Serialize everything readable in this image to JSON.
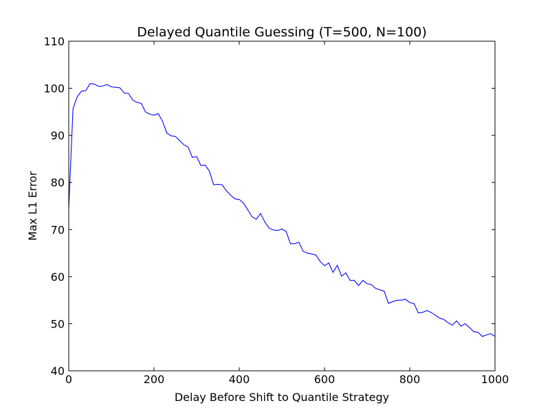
{
  "chart_data": {
    "type": "line",
    "title": "Delayed Quantile Guessing (T=500, N=100)",
    "xlabel": "Delay Before Shift to Quantile Strategy",
    "ylabel": "Max L1 Error",
    "xlim": [
      0,
      1000
    ],
    "ylim": [
      40,
      110
    ],
    "xticks": [
      0,
      200,
      400,
      600,
      800,
      1000
    ],
    "yticks": [
      40,
      50,
      60,
      70,
      80,
      90,
      100,
      110
    ],
    "grid": false,
    "series_color": "#0000ff",
    "series": [
      {
        "x": [
          0,
          10,
          20,
          30,
          40,
          50,
          60,
          70,
          80,
          90,
          100,
          110,
          120,
          130,
          140,
          150,
          160,
          170,
          180,
          190,
          200,
          210,
          220,
          230,
          240,
          250,
          260,
          270,
          280,
          290,
          300,
          310,
          320,
          330,
          340,
          350,
          360,
          370,
          380,
          390,
          400,
          410,
          420,
          430,
          440,
          450,
          460,
          470,
          480,
          490,
          500,
          510,
          520,
          530,
          540,
          550,
          560,
          570,
          580,
          590,
          600,
          610,
          620,
          630,
          640,
          650,
          660,
          670,
          680,
          690,
          700,
          710,
          720,
          730,
          740,
          750,
          760,
          770,
          780,
          790,
          800,
          810,
          820,
          830,
          840,
          850,
          860,
          870,
          880,
          890,
          900,
          910,
          920,
          930,
          940,
          950,
          960,
          970,
          980,
          990,
          1000
        ],
        "values": [
          74.5,
          95.7,
          98.2,
          99.4,
          99.5,
          101.0,
          100.9,
          100.4,
          100.5,
          100.8,
          100.3,
          100.2,
          100.1,
          99.0,
          98.9,
          97.5,
          97.0,
          96.8,
          95.0,
          94.5,
          94.3,
          94.6,
          93.0,
          90.5,
          89.9,
          89.8,
          88.9,
          88.0,
          87.5,
          85.3,
          85.5,
          83.6,
          83.7,
          82.4,
          79.5,
          79.6,
          79.5,
          78.2,
          77.3,
          76.5,
          76.4,
          75.6,
          74.2,
          72.7,
          72.2,
          73.4,
          71.6,
          70.3,
          69.9,
          69.8,
          70.1,
          69.6,
          67.0,
          67.0,
          67.3,
          65.4,
          65.0,
          64.8,
          64.6,
          63.2,
          62.3,
          62.9,
          60.9,
          62.4,
          60.1,
          60.8,
          59.2,
          59.2,
          58.1,
          59.2,
          58.5,
          58.3,
          57.5,
          57.2,
          56.9,
          54.3,
          54.7,
          55.0,
          55.0,
          55.2,
          54.5,
          54.3,
          52.3,
          52.4,
          52.8,
          52.4,
          51.8,
          51.2,
          50.9,
          50.2,
          49.7,
          50.6,
          49.5,
          50.0,
          49.2,
          48.3,
          48.2,
          47.3,
          47.6,
          47.9,
          47.3
        ]
      }
    ]
  }
}
